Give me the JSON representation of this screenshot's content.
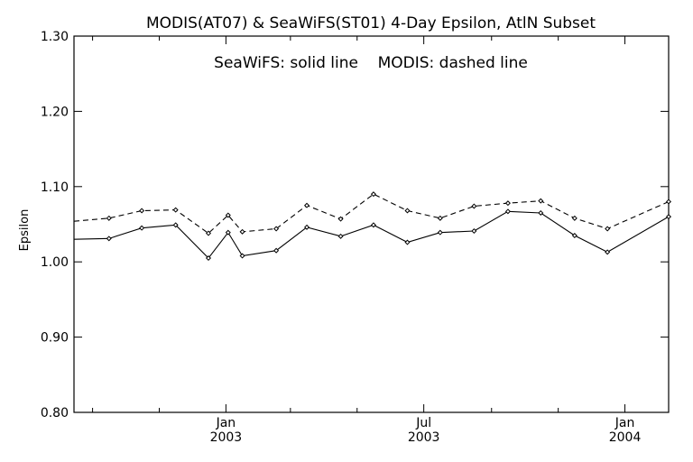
{
  "chart_data": {
    "type": "line",
    "title": "MODIS(AT07) & SeaWiFS(ST01) 4-Day Epsilon, AtlN Subset",
    "annotation": "SeaWiFS: solid line    MODIS: dashed line",
    "xlabel": "",
    "ylabel": "Epsilon",
    "ylim": [
      0.8,
      1.3
    ],
    "xlim": [
      "2002-08-15",
      "2004-02-10"
    ],
    "y_ticks": [
      0.8,
      0.9,
      1.0,
      1.1,
      1.2,
      1.3
    ],
    "y_tick_labels": [
      "0.80",
      "0.90",
      "1.00",
      "1.10",
      "1.20",
      "1.30"
    ],
    "x_ticks_major": [
      "2003-01-01",
      "2003-07-01",
      "2004-01-01"
    ],
    "x_tick_labels": [
      {
        "date": "2003-01-01",
        "month": "Jan",
        "year": "2003"
      },
      {
        "date": "2003-07-01",
        "month": "Jul",
        "year": "2003"
      },
      {
        "date": "2004-01-01",
        "month": "Jan",
        "year": "2004"
      }
    ],
    "x_ticks_minor": [
      "2002-09-01",
      "2002-11-01",
      "2003-03-01",
      "2003-05-01",
      "2003-09-01",
      "2003-11-01"
    ],
    "grid": false,
    "legend": "none",
    "series": [
      {
        "name": "SeaWiFS",
        "line_style": "solid",
        "x": [
          "2002-08-15",
          "2002-09-16",
          "2002-10-16",
          "2002-11-16",
          "2002-12-16",
          "2003-01-03",
          "2003-01-16",
          "2003-02-16",
          "2003-03-16",
          "2003-04-16",
          "2003-05-16",
          "2003-06-16",
          "2003-07-16",
          "2003-08-16",
          "2003-09-16",
          "2003-10-16",
          "2003-11-16",
          "2003-12-16",
          "2004-02-10"
        ],
        "values": [
          1.03,
          1.031,
          1.045,
          1.049,
          1.005,
          1.039,
          1.008,
          1.015,
          1.046,
          1.034,
          1.049,
          1.026,
          1.039,
          1.041,
          1.067,
          1.065,
          1.035,
          1.013,
          1.06
        ]
      },
      {
        "name": "MODIS",
        "line_style": "dashed",
        "x": [
          "2002-08-15",
          "2002-09-16",
          "2002-10-16",
          "2002-11-16",
          "2002-12-16",
          "2003-01-03",
          "2003-01-16",
          "2003-02-16",
          "2003-03-16",
          "2003-04-16",
          "2003-05-16",
          "2003-06-16",
          "2003-07-16",
          "2003-08-16",
          "2003-09-16",
          "2003-10-16",
          "2003-11-16",
          "2003-12-16",
          "2004-02-10"
        ],
        "values": [
          1.054,
          1.058,
          1.068,
          1.069,
          1.038,
          1.062,
          1.04,
          1.044,
          1.075,
          1.057,
          1.09,
          1.068,
          1.058,
          1.074,
          1.078,
          1.081,
          1.058,
          1.044,
          1.08
        ]
      }
    ],
    "colors": {
      "line": "#000000",
      "axis": "#000000",
      "background": "#ffffff"
    }
  }
}
